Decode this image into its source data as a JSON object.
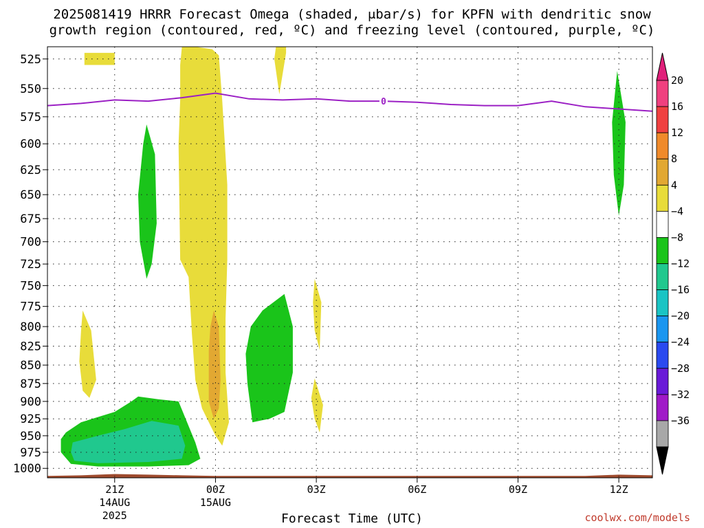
{
  "title_line1": "2025081419 HRRR Forecast Omega (shaded, μbar/s) for KPFN with dendritic snow",
  "title_line2": "growth region (contoured, red, ºC) and freezing level (contoured, purple, ºC)",
  "xlabel": "Forecast Time (UTC)",
  "credit": "coolwx.com/models",
  "chart_data": {
    "type": "heatmap",
    "title": "2025081419 HRRR Forecast Omega (shaded, μbar/s) for KPFN with dendritic snow growth region (contoured, red, ºC) and freezing level (contoured, purple, ºC)",
    "xlabel": "Forecast Time (UTC)",
    "ylabel": "",
    "x_ticks": [
      {
        "hour": 2,
        "label": "21Z",
        "sub1": "14AUG",
        "sub2": "2025"
      },
      {
        "hour": 5,
        "label": "00Z",
        "sub1": "15AUG",
        "sub2": ""
      },
      {
        "hour": 8,
        "label": "03Z",
        "sub1": "",
        "sub2": ""
      },
      {
        "hour": 11,
        "label": "06Z",
        "sub1": "",
        "sub2": ""
      },
      {
        "hour": 14,
        "label": "09Z",
        "sub1": "",
        "sub2": ""
      },
      {
        "hour": 17,
        "label": "12Z",
        "sub1": "",
        "sub2": ""
      }
    ],
    "xlim": [
      0,
      18
    ],
    "y_levels": [
      525,
      550,
      575,
      600,
      625,
      650,
      675,
      700,
      725,
      750,
      775,
      800,
      825,
      850,
      875,
      900,
      925,
      950,
      975,
      1000
    ],
    "ylim": [
      515,
      1015
    ],
    "y_scale": "log",
    "grid": "dotted",
    "colorbar": {
      "labels": [
        "20",
        "16",
        "12",
        "8",
        "4",
        "−4",
        "−8",
        "−12",
        "−16",
        "−20",
        "−24",
        "−28",
        "−32",
        "−36"
      ],
      "colors": [
        "#f0407f",
        "#f04040",
        "#f08a2a",
        "#e2a832",
        "#e8dc3a",
        "#ffffff",
        "#1ac41a",
        "#20c88e",
        "#1ac4c4",
        "#1a96f0",
        "#2a4af0",
        "#6a1ad8",
        "#a01ac8",
        "#a8a8a8"
      ],
      "top_arrow_color": "#e0207a",
      "bottom_arrow_color": "#000000"
    },
    "freezing_level": {
      "label": "0",
      "color": "#9b1fc4",
      "points": [
        [
          0,
          565
        ],
        [
          1,
          563
        ],
        [
          2,
          560
        ],
        [
          3,
          561
        ],
        [
          4,
          558
        ],
        [
          5,
          554
        ],
        [
          6,
          559
        ],
        [
          7,
          560
        ],
        [
          8,
          559
        ],
        [
          9,
          561
        ],
        [
          10,
          561
        ],
        [
          11,
          562
        ],
        [
          12,
          564
        ],
        [
          13,
          565
        ],
        [
          14,
          565
        ],
        [
          15,
          561
        ],
        [
          16,
          566
        ],
        [
          17,
          568
        ],
        [
          18,
          570
        ]
      ]
    },
    "omega_regions": [
      {
        "value": "4 to 8",
        "color": "#e8dc3a",
        "points": [
          [
            1.1,
            520
          ],
          [
            2.0,
            520
          ],
          [
            2.0,
            530
          ],
          [
            1.1,
            530
          ]
        ]
      },
      {
        "value": "4 to 8",
        "color": "#e8dc3a",
        "points": [
          [
            4.0,
            515
          ],
          [
            4.4,
            515
          ],
          [
            4.9,
            517
          ],
          [
            5.1,
            522
          ],
          [
            5.2,
            560
          ],
          [
            5.35,
            640
          ],
          [
            5.35,
            720
          ],
          [
            5.3,
            790
          ],
          [
            5.3,
            860
          ],
          [
            5.4,
            930
          ],
          [
            5.2,
            965
          ],
          [
            5.0,
            950
          ],
          [
            4.6,
            910
          ],
          [
            4.4,
            870
          ],
          [
            4.3,
            810
          ],
          [
            4.2,
            740
          ],
          [
            3.95,
            720
          ],
          [
            3.9,
            600
          ],
          [
            3.95,
            560
          ],
          [
            3.95,
            530
          ]
        ]
      },
      {
        "value": "4 to 8",
        "color": "#e8dc3a",
        "points": [
          [
            6.8,
            515
          ],
          [
            7.1,
            515
          ],
          [
            7.1,
            520
          ],
          [
            6.9,
            555
          ],
          [
            6.75,
            525
          ]
        ]
      },
      {
        "value": "4 to 8",
        "color": "#e8dc3a",
        "points": [
          [
            1.05,
            780
          ],
          [
            1.3,
            805
          ],
          [
            1.45,
            870
          ],
          [
            1.25,
            895
          ],
          [
            1.05,
            885
          ],
          [
            0.95,
            845
          ],
          [
            1.0,
            805
          ]
        ]
      },
      {
        "value": "4 to 8",
        "color": "#e8dc3a",
        "points": [
          [
            7.95,
            742
          ],
          [
            8.15,
            770
          ],
          [
            8.1,
            830
          ],
          [
            7.95,
            805
          ],
          [
            7.9,
            770
          ]
        ]
      },
      {
        "value": "4 to 8",
        "color": "#e8dc3a",
        "points": [
          [
            7.95,
            868
          ],
          [
            8.2,
            905
          ],
          [
            8.1,
            945
          ],
          [
            7.95,
            925
          ],
          [
            7.85,
            895
          ]
        ]
      },
      {
        "value": "8 to 12",
        "color": "#e2a832",
        "points": [
          [
            4.95,
            780
          ],
          [
            5.1,
            800
          ],
          [
            5.15,
            870
          ],
          [
            5.1,
            910
          ],
          [
            4.95,
            925
          ],
          [
            4.8,
            900
          ],
          [
            4.8,
            830
          ],
          [
            4.85,
            800
          ]
        ]
      },
      {
        "value": "-4 to -8",
        "color": "#1ac41a",
        "points": [
          [
            2.95,
            582
          ],
          [
            3.2,
            610
          ],
          [
            3.25,
            680
          ],
          [
            3.1,
            725
          ],
          [
            2.95,
            742
          ],
          [
            2.75,
            700
          ],
          [
            2.7,
            650
          ],
          [
            2.85,
            600
          ]
        ]
      },
      {
        "value": "-4 to -8",
        "color": "#1ac41a",
        "points": [
          [
            16.95,
            535
          ],
          [
            17.2,
            580
          ],
          [
            17.15,
            640
          ],
          [
            17.0,
            672
          ],
          [
            16.85,
            630
          ],
          [
            16.8,
            580
          ]
        ]
      },
      {
        "value": "-4 to -8",
        "color": "#1ac41a",
        "points": [
          [
            7.05,
            760
          ],
          [
            7.3,
            800
          ],
          [
            7.3,
            860
          ],
          [
            7.05,
            915
          ],
          [
            6.6,
            925
          ],
          [
            6.1,
            930
          ],
          [
            5.95,
            875
          ],
          [
            5.9,
            835
          ],
          [
            6.05,
            800
          ],
          [
            6.4,
            780
          ]
        ]
      },
      {
        "value": "-4 to -8",
        "color": "#1ac41a",
        "points": [
          [
            0.55,
            945
          ],
          [
            1.0,
            930
          ],
          [
            2.0,
            915
          ],
          [
            2.5,
            900
          ],
          [
            2.7,
            893
          ],
          [
            3.3,
            897
          ],
          [
            3.9,
            900
          ],
          [
            4.4,
            960
          ],
          [
            4.55,
            985
          ],
          [
            4.2,
            995
          ],
          [
            3.0,
            997
          ],
          [
            1.5,
            997
          ],
          [
            0.7,
            993
          ],
          [
            0.4,
            975
          ],
          [
            0.4,
            955
          ]
        ]
      },
      {
        "value": "-8 to -12",
        "color": "#20c88e",
        "points": [
          [
            0.75,
            960
          ],
          [
            1.5,
            950
          ],
          [
            2.3,
            940
          ],
          [
            3.1,
            928
          ],
          [
            3.9,
            935
          ],
          [
            4.1,
            965
          ],
          [
            4.0,
            985
          ],
          [
            3.0,
            990
          ],
          [
            1.5,
            992
          ],
          [
            0.8,
            988
          ],
          [
            0.7,
            975
          ]
        ]
      }
    ],
    "terrain": {
      "color": "#9e4b2e",
      "points": [
        [
          0,
          1012
        ],
        [
          1,
          1011
        ],
        [
          2,
          1009
        ],
        [
          3,
          1010
        ],
        [
          4,
          1011
        ],
        [
          5,
          1012
        ],
        [
          10,
          1012
        ],
        [
          16,
          1012
        ],
        [
          17,
          1010
        ],
        [
          18,
          1011
        ]
      ]
    }
  }
}
